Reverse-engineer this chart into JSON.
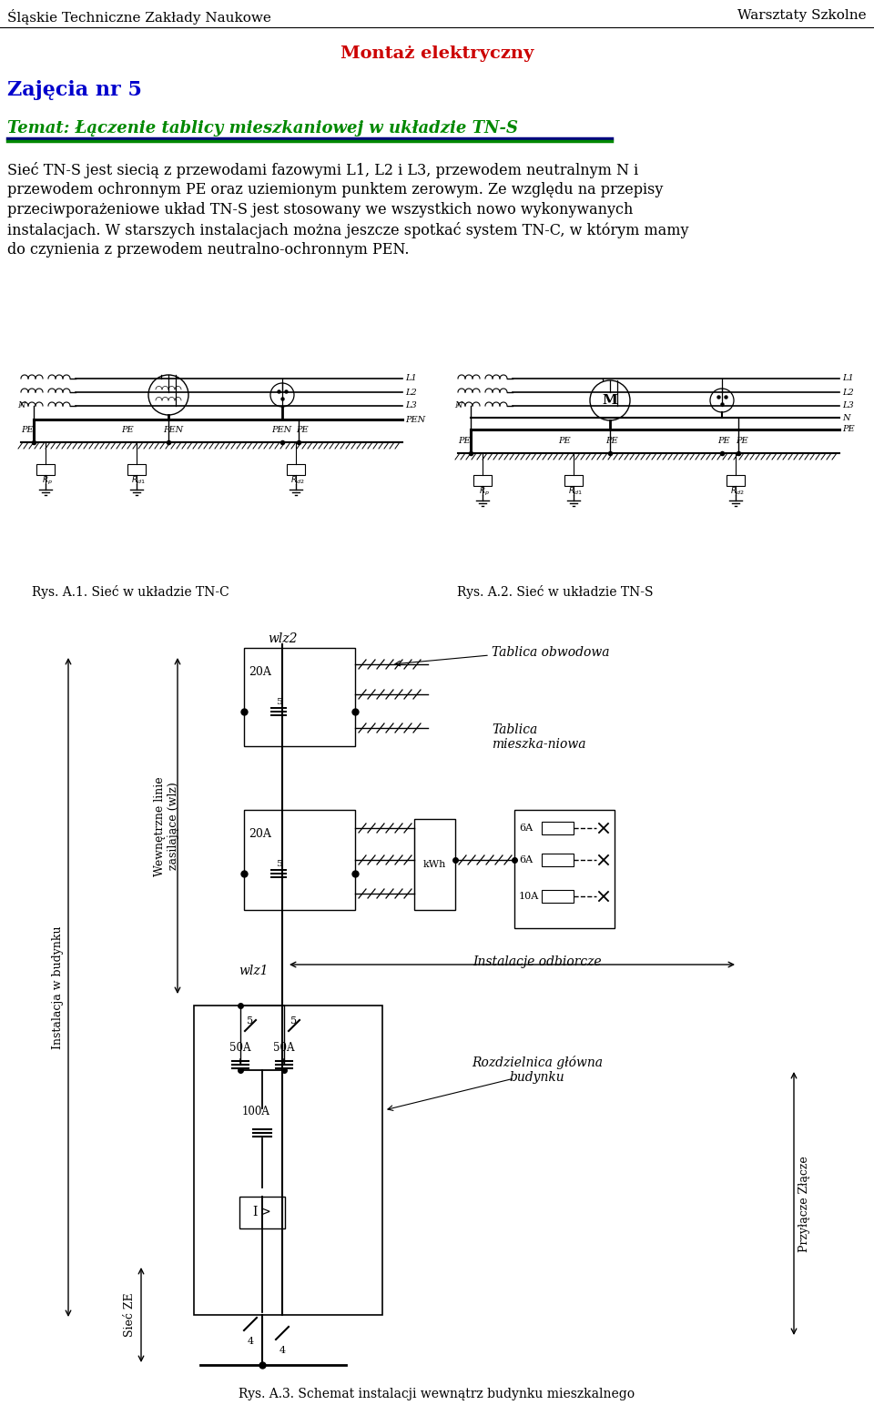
{
  "page_title_left": "Śląskie Techniczne Zakłady Naukowe",
  "page_title_right": "Warsztaty Szkolne",
  "subtitle": "Montaż elektryczny",
  "subtitle_color": "#cc0000",
  "section_label": "Zajęcia nr 5",
  "section_color": "#0000cc",
  "topic_text": "Temat: Łączenie tablicy mieszkaniowej w układzie TN-S",
  "topic_color": "#008800",
  "body_text_lines": [
    "Sieć TN-S jest siecią z przewodami fazowymi L1, L2 i L3, przewodem neutralnym N i",
    "przewodem ochronnym PE oraz uziemionym punktem zerowym. Ze względu na przepisy",
    "przeciwporażeniowe układ TN-S jest stosowany we wszystkich nowo wykonywanych",
    "instalacjach. W starszych instalacjach można jeszcze spotkać system TN-C, w którym mamy",
    "do czynienia z przewodem neutralno-ochronnym PEN."
  ],
  "caption1": "Rys. A.1. Sieć w układzie TN-C",
  "caption2": "Rys. A.2. Sieć w układzie TN-S",
  "caption3": "Rys. A.3. Schemat instalacji wewnątrz budynku mieszkalnego",
  "bg_color": "#ffffff"
}
